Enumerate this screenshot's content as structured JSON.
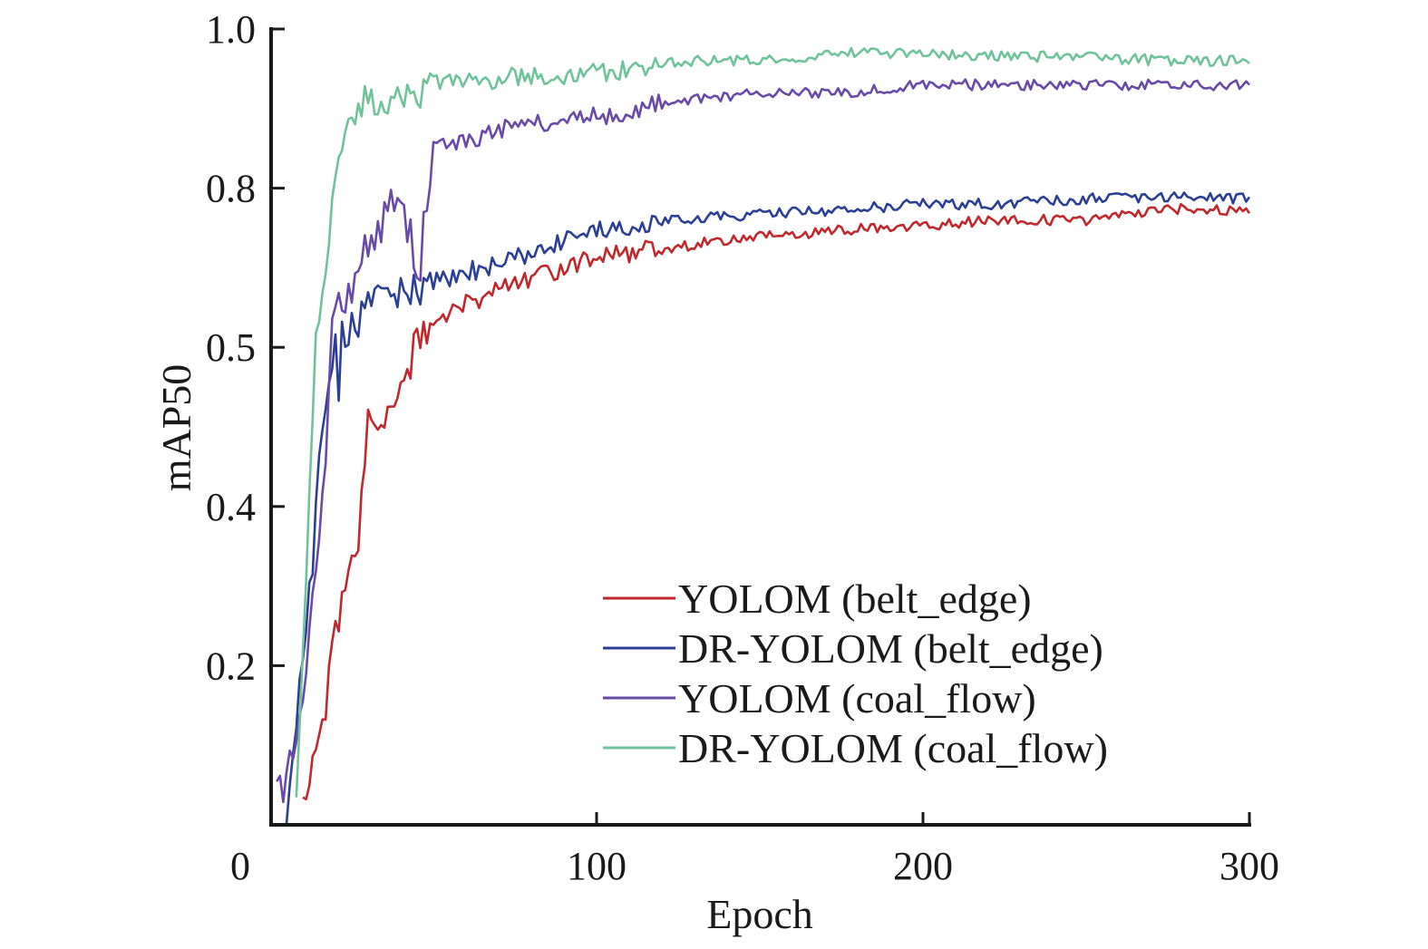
{
  "chart_data": {
    "type": "line",
    "title": "",
    "xlabel": "Epoch",
    "ylabel": "mAP50",
    "xlim": [
      0,
      300
    ],
    "ylim": [
      0,
      1.0
    ],
    "x_ticks": [
      {
        "value": 0,
        "label": "0"
      },
      {
        "value": 100,
        "label": "100"
      },
      {
        "value": 200,
        "label": "200"
      },
      {
        "value": 300,
        "label": "300"
      }
    ],
    "y_ticks": [
      {
        "value": 0.2,
        "label": "0.2"
      },
      {
        "value": 0.4,
        "label": "0.4"
      },
      {
        "value": 0.5,
        "label": "0.5"
      },
      {
        "value": 0.8,
        "label": "0.8"
      },
      {
        "value": 1.0,
        "label": "1.0"
      }
    ],
    "y_axis_scale": "non-uniform (tick labels equally spaced)",
    "grid": false,
    "legend_position": "bottom-right",
    "series": [
      {
        "name": "YOLOM (belt_edge)",
        "color": "#c0282d",
        "x": [
          10,
          15,
          20,
          25,
          30,
          35,
          40,
          45,
          50,
          60,
          75,
          100,
          125,
          150,
          175,
          200,
          225,
          250,
          275,
          300
        ],
        "y": [
          0.01,
          0.1,
          0.24,
          0.33,
          0.46,
          0.45,
          0.48,
          0.5,
          0.55,
          0.58,
          0.62,
          0.67,
          0.69,
          0.71,
          0.72,
          0.73,
          0.74,
          0.74,
          0.76,
          0.76
        ]
      },
      {
        "name": "DR-YOLOM (belt_edge)",
        "color": "#2b3f94",
        "x": [
          5,
          10,
          15,
          20,
          25,
          30,
          40,
          50,
          60,
          75,
          100,
          125,
          150,
          175,
          200,
          225,
          250,
          275,
          300
        ],
        "y": [
          0.01,
          0.2,
          0.43,
          0.5,
          0.54,
          0.58,
          0.6,
          0.62,
          0.64,
          0.67,
          0.72,
          0.74,
          0.75,
          0.76,
          0.77,
          0.77,
          0.78,
          0.785,
          0.78
        ]
      },
      {
        "name": "YOLOM (coal_flow)",
        "color": "#6a4aa8",
        "x": [
          2,
          5,
          10,
          15,
          20,
          25,
          30,
          35,
          40,
          45,
          50,
          60,
          75,
          100,
          125,
          150,
          175,
          200,
          225,
          250,
          275,
          300
        ],
        "y": [
          0.03,
          0.05,
          0.15,
          0.35,
          0.57,
          0.62,
          0.69,
          0.74,
          0.79,
          0.66,
          0.85,
          0.86,
          0.88,
          0.89,
          0.91,
          0.92,
          0.92,
          0.93,
          0.93,
          0.93,
          0.93,
          0.93
        ]
      },
      {
        "name": "DR-YOLOM (coal_flow)",
        "color": "#6fc39a",
        "x": [
          8,
          12,
          15,
          20,
          25,
          30,
          40,
          50,
          75,
          100,
          125,
          150,
          175,
          200,
          225,
          250,
          275,
          300
        ],
        "y": [
          0.01,
          0.42,
          0.55,
          0.81,
          0.89,
          0.91,
          0.92,
          0.93,
          0.94,
          0.945,
          0.96,
          0.96,
          0.97,
          0.97,
          0.965,
          0.965,
          0.96,
          0.96
        ]
      }
    ]
  }
}
